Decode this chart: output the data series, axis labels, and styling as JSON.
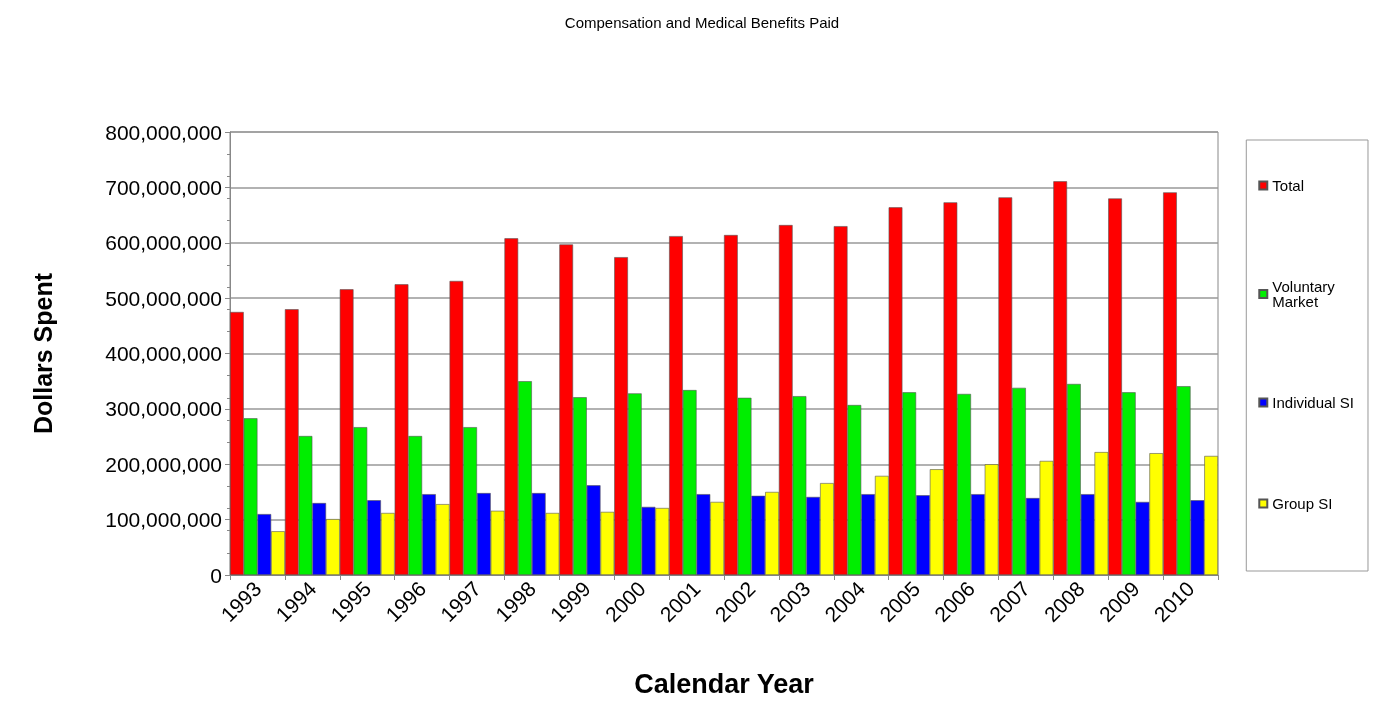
{
  "chart_data": {
    "type": "bar",
    "title": "Compensation and Medical Benefits Paid",
    "xlabel": "Calendar Year",
    "ylabel": "Dollars Spent",
    "categories": [
      "1993",
      "1994",
      "1995",
      "1996",
      "1997",
      "1998",
      "1999",
      "2000",
      "2001",
      "2002",
      "2003",
      "2004",
      "2005",
      "2006",
      "2007",
      "2008",
      "2009",
      "2010"
    ],
    "series": [
      {
        "name": "Total",
        "color": "#ff0000",
        "values": [
          475000000,
          480000000,
          516000000,
          525000000,
          531000000,
          608000000,
          597000000,
          574000000,
          612000000,
          614000000,
          632000000,
          630000000,
          664000000,
          673000000,
          682000000,
          711000000,
          680000000,
          691000000
        ]
      },
      {
        "name": "Voluntary Market",
        "color": "#00ee00",
        "values": [
          283000000,
          251000000,
          267000000,
          251000000,
          267000000,
          350000000,
          321000000,
          328000000,
          334000000,
          320000000,
          323000000,
          307000000,
          330000000,
          327000000,
          338000000,
          345000000,
          330000000,
          341000000
        ]
      },
      {
        "name": "Individual SI",
        "color": "#0000ff",
        "values": [
          110000000,
          130000000,
          135000000,
          146000000,
          148000000,
          148000000,
          162000000,
          123000000,
          146000000,
          143000000,
          141000000,
          146000000,
          144000000,
          146000000,
          139000000,
          146000000,
          132000000,
          135000000
        ]
      },
      {
        "name": "Group SI",
        "color": "#ffff00",
        "values": [
          79000000,
          101000000,
          112000000,
          128000000,
          116000000,
          112000000,
          114000000,
          121000000,
          132000000,
          150000000,
          166000000,
          179000000,
          191000000,
          200000000,
          206000000,
          222000000,
          220000000,
          215000000
        ]
      }
    ],
    "ylim": [
      0,
      800000000
    ],
    "yticks": [
      0,
      {
        "value": 100000000,
        "label": "100,000,000"
      },
      {
        "value": 200000000,
        "label": "200,000,000"
      },
      {
        "value": 300000000,
        "label": "300,000,000"
      },
      {
        "value": 400000000,
        "label": "400,000,000"
      },
      {
        "value": 500000000,
        "label": "500,000,000"
      },
      {
        "value": 600000000,
        "label": "600,000,000"
      },
      {
        "value": 700000000,
        "label": "700,000,000"
      },
      {
        "value": 800000000,
        "label": "800,000,000"
      }
    ],
    "grid": "y",
    "legend": "right"
  }
}
